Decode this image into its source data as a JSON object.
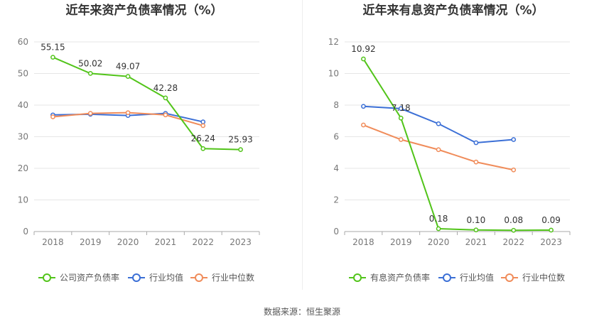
{
  "chart_data": [
    {
      "type": "line",
      "title": "近年来资产负债率情况（%）",
      "categories": [
        "2018",
        "2019",
        "2020",
        "2021",
        "2022",
        "2023"
      ],
      "ylim": [
        0,
        60
      ],
      "yticks": [
        0,
        10,
        20,
        30,
        40,
        50,
        60
      ],
      "grid": true,
      "legend_position": "bottom",
      "series": [
        {
          "name": "公司资产负债率",
          "color": "#52c41a",
          "values": [
            55.15,
            50.02,
            49.07,
            42.28,
            26.24,
            25.93
          ],
          "labels": [
            "55.15",
            "50.02",
            "49.07",
            "42.28",
            "26.24",
            "25.93"
          ]
        },
        {
          "name": "行业均值",
          "color": "#3b6fd6",
          "values": [
            36.9,
            37.1,
            36.7,
            37.4,
            34.7,
            null
          ]
        },
        {
          "name": "行业中位数",
          "color": "#f08c5a",
          "values": [
            36.3,
            37.4,
            37.6,
            36.9,
            33.5,
            null
          ]
        }
      ]
    },
    {
      "type": "line",
      "title": "近年来有息资产负债率情况（%）",
      "categories": [
        "2018",
        "2019",
        "2020",
        "2021",
        "2022",
        "2023"
      ],
      "ylim": [
        0,
        12
      ],
      "yticks": [
        0,
        2,
        4,
        6,
        8,
        10,
        12
      ],
      "grid": true,
      "legend_position": "bottom",
      "series": [
        {
          "name": "有息资产负债率",
          "color": "#52c41a",
          "values": [
            10.92,
            7.18,
            0.18,
            0.1,
            0.08,
            0.09
          ],
          "labels": [
            "10.92",
            "7.18",
            "0.18",
            "0.10",
            "0.08",
            "0.09"
          ]
        },
        {
          "name": "行业均值",
          "color": "#3b6fd6",
          "values": [
            7.92,
            7.78,
            6.82,
            5.62,
            5.82,
            null
          ]
        },
        {
          "name": "行业中位数",
          "color": "#f08c5a",
          "values": [
            6.74,
            5.82,
            5.18,
            4.4,
            3.9,
            null
          ]
        }
      ]
    }
  ],
  "footer": {
    "source": "数据来源：恒生聚源"
  }
}
